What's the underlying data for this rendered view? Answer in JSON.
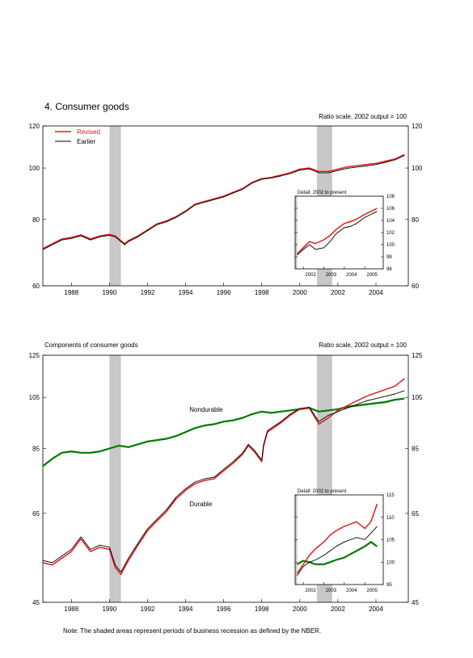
{
  "page": {
    "title": "4. Consumer goods",
    "note": "Note: The shaded areas represent periods of business recession as defined by the NBER."
  },
  "chart_data": [
    {
      "type": "line",
      "id": "top",
      "title": "4. Consumer goods",
      "scale_note": "Ratio scale, 2002 output = 100",
      "log_scale": true,
      "xlim": [
        1986.5,
        2005.7
      ],
      "ylim": [
        60,
        120
      ],
      "x_ticks": [
        {
          "value": 1988,
          "label": "1988"
        },
        {
          "value": 1990,
          "label": "1990"
        },
        {
          "value": 1992,
          "label": "1992"
        },
        {
          "value": 1994,
          "label": "1994"
        },
        {
          "value": 1996,
          "label": "1996"
        },
        {
          "value": 1998,
          "label": "1998"
        },
        {
          "value": 2000,
          "label": "2000"
        },
        {
          "value": 2002,
          "label": "2002"
        },
        {
          "value": 2004,
          "label": "2004"
        }
      ],
      "y_ticks": [
        {
          "value": 60,
          "label": "60"
        },
        {
          "value": 80,
          "label": "80"
        },
        {
          "value": 100,
          "label": "100"
        },
        {
          "value": 120,
          "label": "120"
        }
      ],
      "recessions": [
        [
          1990.0,
          1990.6
        ],
        [
          2000.9,
          2001.7
        ]
      ],
      "legend": [
        {
          "name": "Revised",
          "color": "#e41a1c"
        },
        {
          "name": "Earlier",
          "color": "#000000"
        }
      ],
      "series": [
        {
          "name": "Revised",
          "color": "#e41a1c",
          "key": "r",
          "x": [
            1986.5,
            1987,
            1987.5,
            1988,
            1988.5,
            1989,
            1989.5,
            1990,
            1990.3,
            1990.8,
            1991,
            1991.5,
            1992,
            1992.5,
            1993,
            1993.5,
            1994,
            1994.5,
            1995,
            1995.5,
            1996,
            1996.5,
            1997,
            1997.5,
            1998,
            1998.5,
            1999,
            1999.5,
            2000,
            2000.5,
            2001,
            2001.5,
            2002,
            2002.5,
            2003,
            2003.5,
            2004,
            2004.5,
            2005,
            2005.5
          ],
          "values": [
            70.5,
            72,
            73.5,
            74,
            74.8,
            73.5,
            74.5,
            75,
            74.5,
            72,
            73,
            74.5,
            76.5,
            78.5,
            79.5,
            81,
            83,
            85.5,
            86.5,
            87.5,
            88.5,
            90,
            91.5,
            94,
            95.5,
            96,
            97,
            98,
            99.5,
            100,
            98.5,
            98.5,
            99.5,
            100.5,
            101,
            101.5,
            102,
            103,
            104,
            106
          ]
        },
        {
          "name": "Earlier",
          "color": "#000000",
          "key": "e",
          "x": [
            1986.5,
            1987,
            1987.5,
            1988,
            1988.5,
            1989,
            1989.5,
            1990,
            1990.3,
            1990.8,
            1991,
            1991.5,
            1992,
            1992.5,
            1993,
            1993.5,
            1994,
            1994.5,
            1995,
            1995.5,
            1996,
            1996.5,
            1997,
            1997.5,
            1998,
            1998.5,
            1999,
            1999.5,
            2000,
            2000.5,
            2001,
            2001.5,
            2002,
            2002.5,
            2003,
            2003.5,
            2004,
            2004.5,
            2005,
            2005.5
          ],
          "values": [
            70.2,
            71.7,
            73.2,
            73.7,
            74.5,
            73.2,
            74.2,
            74.7,
            74.2,
            71.7,
            72.7,
            74.2,
            76.2,
            78.2,
            79.2,
            80.7,
            82.7,
            85.2,
            86.2,
            87.2,
            88.2,
            89.7,
            91.2,
            93.7,
            95.2,
            95.7,
            96.6,
            97.6,
            99.1,
            99.6,
            98,
            97.9,
            98.9,
            99.9,
            100.4,
            100.9,
            101.5,
            102.5,
            103.6,
            105.6
          ]
        }
      ],
      "inset": {
        "title": "Detail: 2002 to present",
        "xlim": [
          2001.6,
          2005.9
        ],
        "ylim": [
          96,
          108
        ],
        "x_ticks": [
          {
            "value": 2002,
            "label": "2002"
          },
          {
            "value": 2003,
            "label": "2003"
          },
          {
            "value": 2004,
            "label": "2004"
          },
          {
            "value": 2005,
            "label": "2005"
          }
        ],
        "y_ticks": [
          {
            "value": 96,
            "label": "96"
          },
          {
            "value": 98,
            "label": "98"
          },
          {
            "value": 100,
            "label": "100"
          },
          {
            "value": 102,
            "label": "102"
          },
          {
            "value": 104,
            "label": "104"
          },
          {
            "value": 106,
            "label": "106"
          },
          {
            "value": 108,
            "label": "108"
          }
        ],
        "recessions": [
          [
            2000.9,
            2001.7
          ]
        ],
        "series": [
          {
            "name": "Revised",
            "color": "#e41a1c",
            "key": "r",
            "x": [
              2001.7,
              2002,
              2002.3,
              2002.6,
              2003,
              2003.3,
              2003.6,
              2004,
              2004.3,
              2004.6,
              2005,
              2005.3,
              2005.6
            ],
            "values": [
              98.5,
              99.5,
              100.5,
              100.2,
              100.8,
              101.5,
              102.5,
              103.5,
              103.8,
              104.2,
              105,
              105.5,
              106
            ]
          },
          {
            "name": "Earlier",
            "color": "#000000",
            "key": "e",
            "x": [
              2001.7,
              2002,
              2002.3,
              2002.6,
              2003,
              2003.3,
              2003.6,
              2004,
              2004.3,
              2004.6,
              2005,
              2005.3,
              2005.6
            ],
            "values": [
              98.3,
              99.2,
              100,
              99.2,
              99.5,
              100.5,
              101.8,
              102.8,
              103,
              103.5,
              104.5,
              105,
              105.5
            ]
          }
        ]
      }
    },
    {
      "type": "line",
      "id": "bottom",
      "title": "Components of consumer goods",
      "scale_note": "Ratio scale, 2002 output = 100",
      "log_scale": true,
      "xlim": [
        1986.5,
        2005.7
      ],
      "ylim": [
        45,
        125
      ],
      "x_ticks": [
        {
          "value": 1988,
          "label": "1988"
        },
        {
          "value": 1990,
          "label": "1990"
        },
        {
          "value": 1992,
          "label": "1992"
        },
        {
          "value": 1994,
          "label": "1994"
        },
        {
          "value": 1996,
          "label": "1996"
        },
        {
          "value": 1998,
          "label": "1998"
        },
        {
          "value": 2000,
          "label": "2000"
        },
        {
          "value": 2002,
          "label": "2002"
        },
        {
          "value": 2004,
          "label": "2004"
        }
      ],
      "y_ticks": [
        {
          "value": 45,
          "label": "45"
        },
        {
          "value": 65,
          "label": "65"
        },
        {
          "value": 85,
          "label": "85"
        },
        {
          "value": 105,
          "label": "105"
        },
        {
          "value": 125,
          "label": "125"
        }
      ],
      "recessions": [
        [
          1990.0,
          1990.6
        ],
        [
          2000.9,
          2001.7
        ]
      ],
      "annotations": [
        {
          "text": "Nondurable",
          "x": 1994.2,
          "y": 99
        },
        {
          "text": "Durable",
          "x": 1994.2,
          "y": 67
        }
      ],
      "series": [
        {
          "name": "Nondurable",
          "color": "#007a00",
          "key": "n",
          "x": [
            1986.5,
            1987,
            1987.5,
            1988,
            1988.5,
            1989,
            1989.5,
            1990,
            1990.5,
            1991,
            1991.5,
            1992,
            1992.5,
            1993,
            1993.5,
            1994,
            1994.5,
            1995,
            1995.5,
            1996,
            1996.5,
            1997,
            1997.5,
            1998,
            1998.5,
            1999,
            1999.5,
            2000,
            2000.5,
            2001,
            2001.5,
            2002,
            2002.5,
            2003,
            2003.5,
            2004,
            2004.5,
            2005,
            2005.5
          ],
          "values": [
            79,
            81.5,
            83.5,
            84,
            83.5,
            83.5,
            84,
            85,
            86,
            85.5,
            86.5,
            87.5,
            88,
            88.5,
            89.5,
            91,
            92.5,
            93.5,
            94,
            95,
            95.5,
            96.5,
            98,
            99,
            98.5,
            99,
            99.5,
            100,
            100.5,
            99,
            99.5,
            100,
            101,
            101.5,
            102,
            102.5,
            103,
            104,
            104.5
          ]
        },
        {
          "name": "Durable, revised",
          "color": "#e41a1c",
          "key": "dr",
          "x": [
            1986.5,
            1987,
            1987.5,
            1988,
            1988.5,
            1989,
            1989.5,
            1990,
            1990.3,
            1990.6,
            1991,
            1991.5,
            1992,
            1992.5,
            1993,
            1993.5,
            1994,
            1994.5,
            1995,
            1995.5,
            1996,
            1996.5,
            1997,
            1997.3,
            1997.6,
            1998,
            1998.1,
            1998.3,
            1998.6,
            1999,
            1999.5,
            2000,
            2000.5,
            2001,
            2001.5,
            2002,
            2002.5,
            2003,
            2003.5,
            2004,
            2004.5,
            2005,
            2005.5
          ],
          "values": [
            53,
            52.5,
            54,
            55.5,
            58.5,
            55.5,
            56.5,
            56,
            52,
            50.5,
            53.5,
            57,
            60.5,
            63,
            65.5,
            69,
            71.5,
            73.5,
            74.5,
            75,
            77.5,
            80,
            83,
            86,
            84,
            80.5,
            86,
            91,
            92.5,
            94.5,
            97.5,
            100,
            100.5,
            94,
            96.5,
            99.5,
            101.5,
            103.5,
            105.5,
            107,
            108.5,
            110,
            113.5
          ]
        },
        {
          "name": "Durable, earlier",
          "color": "#000000",
          "key": "de",
          "x": [
            1986.5,
            1987,
            1987.5,
            1988,
            1988.5,
            1989,
            1989.5,
            1990,
            1990.3,
            1990.6,
            1991,
            1991.5,
            1992,
            1992.5,
            1993,
            1993.5,
            1994,
            1994.5,
            1995,
            1995.5,
            1996,
            1996.5,
            1997,
            1997.3,
            1997.6,
            1998,
            1998.1,
            1998.3,
            1998.6,
            1999,
            1999.5,
            2000,
            2000.5,
            2001,
            2001.5,
            2002,
            2002.5,
            2003,
            2003.5,
            2004,
            2004.5,
            2005,
            2005.5
          ],
          "values": [
            53.5,
            53,
            54.5,
            56,
            59,
            56,
            57,
            56.5,
            52.5,
            51,
            54,
            57.5,
            61,
            63.5,
            66,
            69.5,
            72,
            74,
            75,
            75.5,
            78,
            80.5,
            83.5,
            86.5,
            84.5,
            81,
            86.5,
            91.5,
            93,
            95,
            98,
            100.3,
            100.8,
            95,
            97.5,
            99,
            100.5,
            102,
            103.5,
            104.5,
            105.5,
            106.5,
            108
          ]
        }
      ],
      "inset": {
        "title": "Detail: 2002 to present",
        "xlim": [
          2001.6,
          2005.9
        ],
        "ylim": [
          95,
          115
        ],
        "x_ticks": [
          {
            "value": 2002,
            "label": "2002"
          },
          {
            "value": 2003,
            "label": "2003"
          },
          {
            "value": 2004,
            "label": "2004"
          },
          {
            "value": 2005,
            "label": "2005"
          }
        ],
        "y_ticks": [
          {
            "value": 95,
            "label": "95"
          },
          {
            "value": 100,
            "label": "100"
          },
          {
            "value": 105,
            "label": "105"
          },
          {
            "value": 110,
            "label": "110"
          },
          {
            "value": 115,
            "label": "115"
          }
        ],
        "recessions": [
          [
            2000.9,
            2001.7
          ]
        ],
        "series": [
          {
            "name": "Nondurable",
            "color": "#007a00",
            "key": "n",
            "x": [
              2001.7,
              2002,
              2002.3,
              2002.6,
              2003,
              2003.3,
              2003.6,
              2004,
              2004.3,
              2004.6,
              2005,
              2005.3,
              2005.6
            ],
            "values": [
              99.5,
              100.3,
              100,
              99.5,
              99.5,
              100,
              100.5,
              101,
              101.8,
              102.5,
              103.5,
              104.5,
              103.5
            ]
          },
          {
            "name": "Durable, revised",
            "color": "#e41a1c",
            "key": "dr",
            "x": [
              2001.7,
              2002,
              2002.3,
              2002.6,
              2003,
              2003.3,
              2003.6,
              2004,
              2004.3,
              2004.6,
              2005,
              2005.3,
              2005.6
            ],
            "values": [
              97.5,
              99.5,
              101.5,
              103,
              104.5,
              106,
              107,
              108,
              108.5,
              109,
              107.5,
              109,
              113
            ]
          },
          {
            "name": "Durable, earlier",
            "color": "#000000",
            "key": "de",
            "x": [
              2001.7,
              2002,
              2002.3,
              2002.6,
              2003,
              2003.3,
              2003.6,
              2004,
              2004.3,
              2004.6,
              2005,
              2005.3,
              2005.6
            ],
            "values": [
              97,
              99,
              100,
              100.5,
              101.5,
              102.5,
              103.5,
              104.5,
              105,
              105.5,
              105,
              106.5,
              108
            ]
          }
        ]
      }
    }
  ]
}
